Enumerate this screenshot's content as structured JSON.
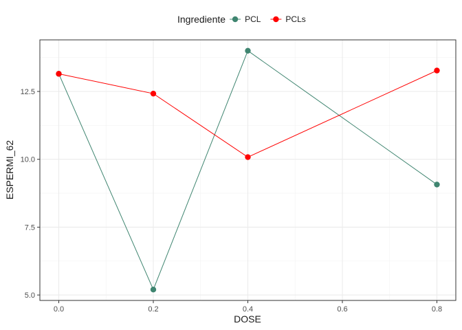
{
  "chart_data": {
    "type": "line",
    "xlabel": "DOSE",
    "ylabel": "ESPERMI_62",
    "xlim": [
      -0.04,
      0.84
    ],
    "ylim": [
      4.8,
      14.4
    ],
    "x_ticks": [
      0.0,
      0.2,
      0.4,
      0.6,
      0.8
    ],
    "x_tick_labels": [
      "0.0",
      "0.2",
      "0.4",
      "0.6",
      "0.8"
    ],
    "y_ticks": [
      5.0,
      7.5,
      10.0,
      12.5
    ],
    "y_tick_labels": [
      "5.0",
      "7.5",
      "10.0",
      "12.5"
    ],
    "grid": true,
    "legend": {
      "title": "Ingrediente",
      "placement": "top"
    },
    "series": [
      {
        "name": "PCL",
        "color": "#3f8570",
        "x": [
          0.0,
          0.2,
          0.4,
          0.8
        ],
        "y": [
          13.15,
          5.2,
          14.0,
          9.07
        ]
      },
      {
        "name": "PCLs",
        "color": "#ff0000",
        "x": [
          0.0,
          0.2,
          0.4,
          0.8
        ],
        "y": [
          13.15,
          12.42,
          10.08,
          13.27
        ]
      }
    ]
  }
}
